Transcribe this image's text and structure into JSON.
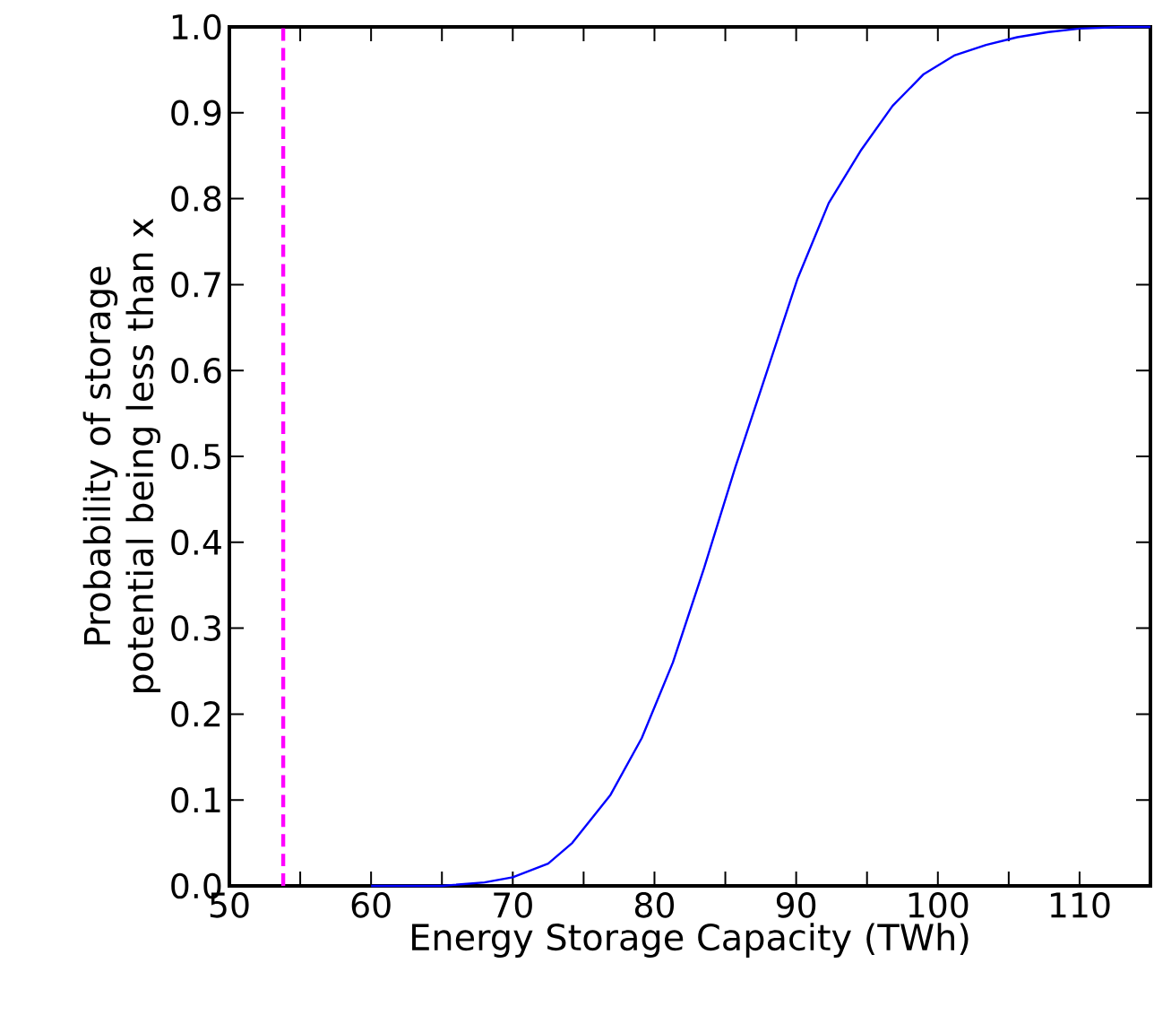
{
  "chart_data": {
    "type": "line",
    "xlabel": "Energy Storage Capacity (TWh)",
    "ylabel": "Probability of storage potential being less than x",
    "x": [
      60,
      65,
      68,
      70,
      72.5,
      74.2,
      76.9,
      79.1,
      81.3,
      83.5,
      85.7,
      87.9,
      90.1,
      92.3,
      94.6,
      96.8,
      99,
      101.2,
      103.4,
      105.6,
      107.8,
      110,
      113.1,
      115
    ],
    "series": [
      {
        "color": "#0000ff",
        "values": [
          0,
          0,
          0.004,
          0.01,
          0.026,
          0.05,
          0.106,
          0.172,
          0.26,
          0.37,
          0.487,
          0.597,
          0.707,
          0.795,
          0.857,
          0.908,
          0.945,
          0.967,
          0.979,
          0.988,
          0.994,
          0.998,
          1.0,
          1.0
        ]
      }
    ],
    "xlim": [
      50,
      115
    ],
    "ylim": [
      0,
      1
    ],
    "xticks": [
      50,
      {
        "value": 55,
        "label": null
      },
      60,
      {
        "value": 65,
        "label": null
      },
      70,
      {
        "value": 75,
        "label": null
      },
      80,
      {
        "value": 85,
        "label": null
      },
      90,
      {
        "value": 95,
        "label": null
      },
      100,
      {
        "value": 105,
        "label": null
      },
      110
    ],
    "yticks": [
      {
        "value": 0,
        "label": "0.0"
      },
      {
        "value": 0.1,
        "label": "0.1"
      },
      {
        "value": 0.2,
        "label": "0.2"
      },
      {
        "value": 0.3,
        "label": "0.3"
      },
      {
        "value": 0.4,
        "label": "0.4"
      },
      {
        "value": 0.5,
        "label": "0.5"
      },
      {
        "value": 0.6,
        "label": "0.6"
      },
      {
        "value": 0.7,
        "label": "0.7"
      },
      {
        "value": 0.8,
        "label": "0.8"
      },
      {
        "value": 0.9,
        "label": "0.9"
      },
      {
        "value": 1,
        "label": "1.0"
      }
    ],
    "ref_lines": [
      {
        "axis": "x",
        "value": 53.8,
        "color": "#ff00ff",
        "line_style": "dashed"
      }
    ],
    "grid": false,
    "legend": false,
    "marker": "none",
    "line_style": "solid"
  }
}
